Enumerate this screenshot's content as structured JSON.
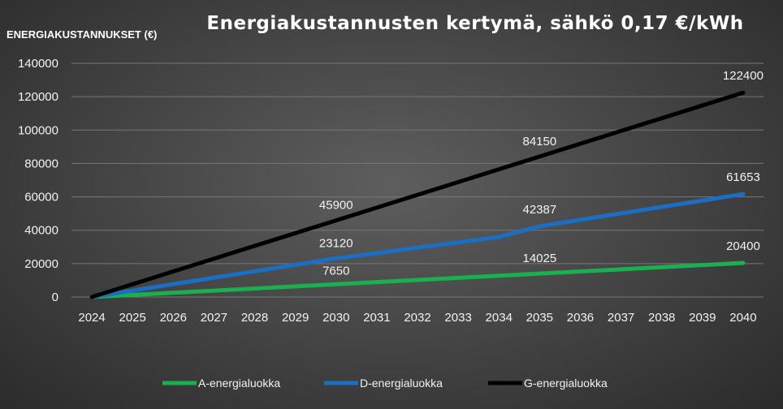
{
  "chart_data": {
    "type": "line",
    "title": "Energiakustannusten kertymä, sähkö 0,17 €/kWh",
    "ylabel": "ENERGIAKUSTANNUKSET (€)",
    "xlabel": "",
    "ylim": [
      0,
      140000
    ],
    "yticks": [
      "0",
      "20000",
      "40000",
      "60000",
      "80000",
      "100000",
      "120000",
      "140000"
    ],
    "x": [
      "2024",
      "2025",
      "2026",
      "2027",
      "2028",
      "2029",
      "2030",
      "2031",
      "2032",
      "2033",
      "2034",
      "2035",
      "2036",
      "2037",
      "2038",
      "2039",
      "2040"
    ],
    "grid": true,
    "legend": "bottom",
    "series": [
      {
        "name": "A-energialuokka",
        "color": "#1ab04f",
        "values": [
          0,
          1275,
          2550,
          3825,
          5100,
          6375,
          7650,
          8925,
          10200,
          11475,
          12750,
          14025,
          15300,
          16575,
          17850,
          19125,
          20400
        ],
        "labels": [
          {
            "year": "2030",
            "text": "7650"
          },
          {
            "year": "2035",
            "text": "14025"
          },
          {
            "year": "2040",
            "text": "20400"
          }
        ]
      },
      {
        "name": "D-energialuokka",
        "color": "#1a6fc4",
        "values": [
          0,
          3853,
          7707,
          11560,
          15413,
          19267,
          23120,
          26330,
          29540,
          32751,
          35961,
          42387,
          46240,
          50094,
          53947,
          57800,
          61653
        ],
        "labels": [
          {
            "year": "2030",
            "text": "23120"
          },
          {
            "year": "2035",
            "text": "42387"
          },
          {
            "year": "2040",
            "text": "61653"
          }
        ]
      },
      {
        "name": "G-energialuokka",
        "color": "#000000",
        "values": [
          0,
          7650,
          15300,
          22950,
          30600,
          38250,
          45900,
          53550,
          61200,
          68850,
          76500,
          84150,
          91800,
          99450,
          107100,
          114750,
          122400
        ],
        "labels": [
          {
            "year": "2030",
            "text": "45900"
          },
          {
            "year": "2035",
            "text": "84150"
          },
          {
            "year": "2040",
            "text": "122400"
          }
        ]
      }
    ]
  }
}
